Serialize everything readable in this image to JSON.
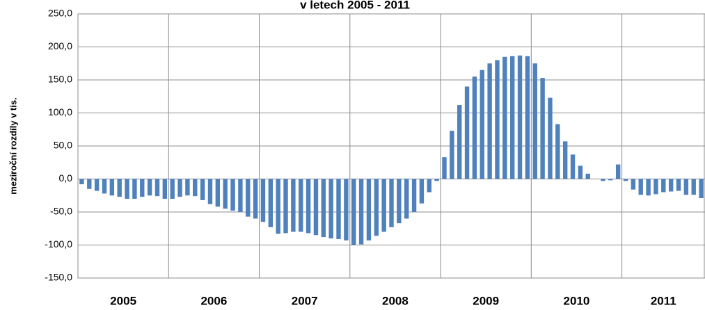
{
  "chart_data": {
    "type": "bar",
    "title": "v letech 2005 - 2011",
    "y_label": "meziroční rozdíly v tis.",
    "color": "#4f81bd",
    "grid": true,
    "year_labels": [
      "2005",
      "2006",
      "2007",
      "2008",
      "2009",
      "2010",
      "2011"
    ],
    "ylim": [
      -150,
      250
    ],
    "yticks": [
      {
        "value": -150,
        "label": "-150,0"
      },
      {
        "value": -100,
        "label": "-100,0"
      },
      {
        "value": -50,
        "label": "-50,0"
      },
      {
        "value": 0,
        "label": "0,0"
      },
      {
        "value": 50,
        "label": "50,0"
      },
      {
        "value": 100,
        "label": "100,0"
      },
      {
        "value": 150,
        "label": "150,0"
      },
      {
        "value": 200,
        "label": "200,0"
      },
      {
        "value": 250,
        "label": "250,0"
      }
    ],
    "categories": [
      null,
      null,
      null,
      null,
      null,
      null,
      null,
      null,
      null,
      null,
      null,
      null,
      null,
      null,
      null,
      null,
      null,
      null,
      null,
      null,
      null,
      null,
      null,
      null,
      null,
      null,
      null,
      null,
      null,
      null,
      null,
      null,
      null,
      null,
      null,
      null,
      null,
      null,
      null,
      null,
      null,
      null,
      null,
      null,
      null,
      null,
      null,
      null,
      null,
      null,
      null,
      null,
      null,
      null,
      null,
      null,
      null,
      null,
      null,
      null,
      null,
      null,
      null,
      null,
      null,
      null,
      null,
      null,
      null,
      null,
      null,
      null,
      null,
      null,
      null,
      null,
      null,
      null,
      null,
      null,
      null,
      null,
      null
    ],
    "values": [
      -8,
      -15,
      -18,
      -22,
      -25,
      -27,
      -30,
      -30,
      -27,
      -25,
      -26,
      -30,
      -30,
      -27,
      -25,
      -26,
      -32,
      -38,
      -42,
      -45,
      -48,
      -50,
      -57,
      -60,
      -65,
      -73,
      -83,
      -82,
      -80,
      -80,
      -82,
      -85,
      -88,
      -90,
      -91,
      -93,
      -100,
      -99,
      -93,
      -86,
      -80,
      -73,
      -67,
      -60,
      -50,
      -37,
      -20,
      -3,
      33,
      73,
      112,
      140,
      155,
      165,
      175,
      180,
      185,
      186,
      187,
      186,
      175,
      153,
      123,
      83,
      57,
      37,
      20,
      8,
      0,
      -3,
      -2,
      22,
      -3,
      -16,
      -24,
      -25,
      -23,
      -20,
      -19,
      -18,
      -24,
      -24,
      -29
    ]
  }
}
